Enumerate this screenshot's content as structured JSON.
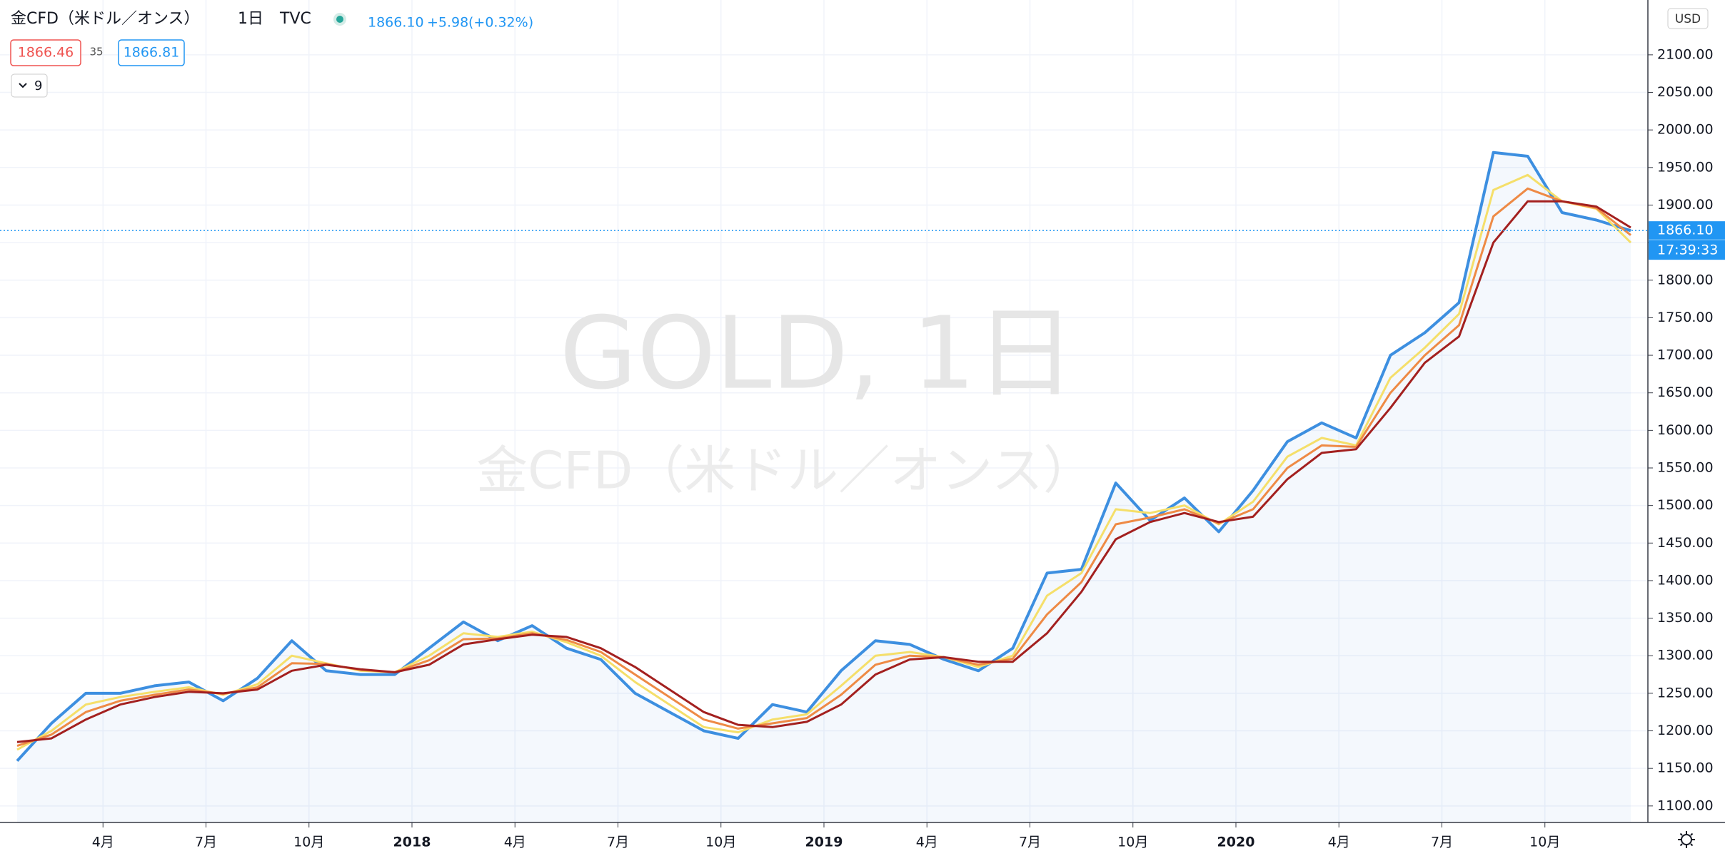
{
  "header": {
    "symbol": "金CFD（米ドル／オンス）",
    "interval": "1日",
    "exchange": "TVC",
    "last": "1866.10",
    "change": "+5.98",
    "change_pct": "(+0.32%)",
    "bid": "1866.46",
    "spread": "35",
    "ask": "1866.81",
    "indicators": "9"
  },
  "watermark": {
    "title": "GOLD, 1日",
    "subtitle": "金CFD（米ドル／オンス）"
  },
  "chart_data": {
    "type": "line",
    "x": [
      "2017-01",
      "2017-02",
      "2017-03",
      "2017-04",
      "2017-05",
      "2017-06",
      "2017-07",
      "2017-08",
      "2017-09",
      "2017-10",
      "2017-11",
      "2017-12",
      "2018-01",
      "2018-02",
      "2018-03",
      "2018-04",
      "2018-05",
      "2018-06",
      "2018-07",
      "2018-08",
      "2018-09",
      "2018-10",
      "2018-11",
      "2018-12",
      "2019-01",
      "2019-02",
      "2019-03",
      "2019-04",
      "2019-05",
      "2019-06",
      "2019-07",
      "2019-08",
      "2019-09",
      "2019-10",
      "2019-11",
      "2019-12",
      "2020-01",
      "2020-02",
      "2020-03",
      "2020-04",
      "2020-05",
      "2020-06",
      "2020-07",
      "2020-08",
      "2020-09",
      "2020-10",
      "2020-11",
      "2020-12"
    ],
    "series": [
      {
        "color": "#3d8fe0",
        "values": [
          1160,
          1210,
          1250,
          1250,
          1260,
          1265,
          1240,
          1270,
          1320,
          1280,
          1275,
          1275,
          1310,
          1345,
          1320,
          1340,
          1310,
          1295,
          1250,
          1225,
          1200,
          1190,
          1235,
          1225,
          1280,
          1320,
          1315,
          1295,
          1280,
          1310,
          1410,
          1415,
          1530,
          1480,
          1510,
          1465,
          1520,
          1585,
          1610,
          1590,
          1700,
          1730,
          1770,
          1970,
          1965,
          1890,
          1880,
          1866
        ]
      },
      {
        "color": "#f5df6a",
        "values": [
          1175,
          1200,
          1235,
          1245,
          1252,
          1258,
          1248,
          1262,
          1300,
          1290,
          1280,
          1278,
          1300,
          1330,
          1325,
          1332,
          1318,
          1300,
          1265,
          1235,
          1205,
          1198,
          1215,
          1222,
          1260,
          1300,
          1305,
          1298,
          1285,
          1300,
          1380,
          1410,
          1495,
          1490,
          1500,
          1475,
          1505,
          1565,
          1590,
          1580,
          1670,
          1710,
          1755,
          1920,
          1940,
          1905,
          1895,
          1850
        ]
      },
      {
        "color": "#ee8a45",
        "values": [
          1180,
          1195,
          1225,
          1240,
          1248,
          1255,
          1249,
          1258,
          1290,
          1289,
          1281,
          1278,
          1294,
          1322,
          1323,
          1330,
          1321,
          1305,
          1275,
          1245,
          1215,
          1203,
          1210,
          1217,
          1248,
          1288,
          1300,
          1298,
          1288,
          1296,
          1355,
          1398,
          1475,
          1484,
          1495,
          1476,
          1495,
          1550,
          1580,
          1578,
          1650,
          1700,
          1740,
          1885,
          1922,
          1905,
          1896,
          1860
        ]
      },
      {
        "color": "#a3201f",
        "values": [
          1185,
          1190,
          1215,
          1235,
          1245,
          1252,
          1250,
          1255,
          1280,
          1288,
          1282,
          1278,
          1288,
          1315,
          1322,
          1328,
          1325,
          1310,
          1285,
          1255,
          1225,
          1208,
          1205,
          1212,
          1235,
          1275,
          1295,
          1298,
          1292,
          1292,
          1330,
          1385,
          1455,
          1478,
          1490,
          1478,
          1485,
          1535,
          1570,
          1575,
          1630,
          1690,
          1725,
          1850,
          1905,
          1905,
          1898,
          1870
        ]
      }
    ],
    "xlim": [
      "2017-01",
      "2021-01"
    ],
    "xticks": [
      {
        "value": "2017-04",
        "label": "4月"
      },
      {
        "value": "2017-07",
        "label": "7月"
      },
      {
        "value": "2017-10",
        "label": "10月"
      },
      {
        "value": "2018-01",
        "label": "2018"
      },
      {
        "value": "2018-04",
        "label": "4月"
      },
      {
        "value": "2018-07",
        "label": "7月"
      },
      {
        "value": "2018-10",
        "label": "10月"
      },
      {
        "value": "2019-01",
        "label": "2019"
      },
      {
        "value": "2019-04",
        "label": "4月"
      },
      {
        "value": "2019-07",
        "label": "7月"
      },
      {
        "value": "2019-10",
        "label": "10月"
      },
      {
        "value": "2020-01",
        "label": "2020"
      },
      {
        "value": "2020-04",
        "label": "4月"
      },
      {
        "value": "2020-07",
        "label": "7月"
      },
      {
        "value": "2020-10",
        "label": "10月"
      }
    ],
    "ylim": [
      1078,
      2173
    ],
    "yticks": [
      {
        "value": 1100,
        "label": "1100.00"
      },
      {
        "value": 1150,
        "label": "1150.00"
      },
      {
        "value": 1200,
        "label": "1200.00"
      },
      {
        "value": 1250,
        "label": "1250.00"
      },
      {
        "value": 1300,
        "label": "1300.00"
      },
      {
        "value": 1350,
        "label": "1350.00"
      },
      {
        "value": 1400,
        "label": "1400.00"
      },
      {
        "value": 1450,
        "label": "1450.00"
      },
      {
        "value": 1500,
        "label": "1500.00"
      },
      {
        "value": 1550,
        "label": "1550.00"
      },
      {
        "value": 1600,
        "label": "1600.00"
      },
      {
        "value": 1650,
        "label": "1650.00"
      },
      {
        "value": 1700,
        "label": "1700.00"
      },
      {
        "value": 1750,
        "label": "1750.00"
      },
      {
        "value": 1800,
        "label": "1800.00"
      },
      {
        "value": 1850,
        "label": "1850.00"
      },
      {
        "value": 1900,
        "label": "1900.00"
      },
      {
        "value": 1950,
        "label": "1950.00"
      },
      {
        "value": 2000,
        "label": "2000.00"
      },
      {
        "value": 2050,
        "label": "2050.00"
      },
      {
        "value": 2100,
        "label": "2100.00"
      }
    ],
    "grid": true,
    "currency": "USD",
    "last_price": {
      "value": 1866.1,
      "label": "1866.10"
    },
    "countdown": "17:39:33"
  }
}
